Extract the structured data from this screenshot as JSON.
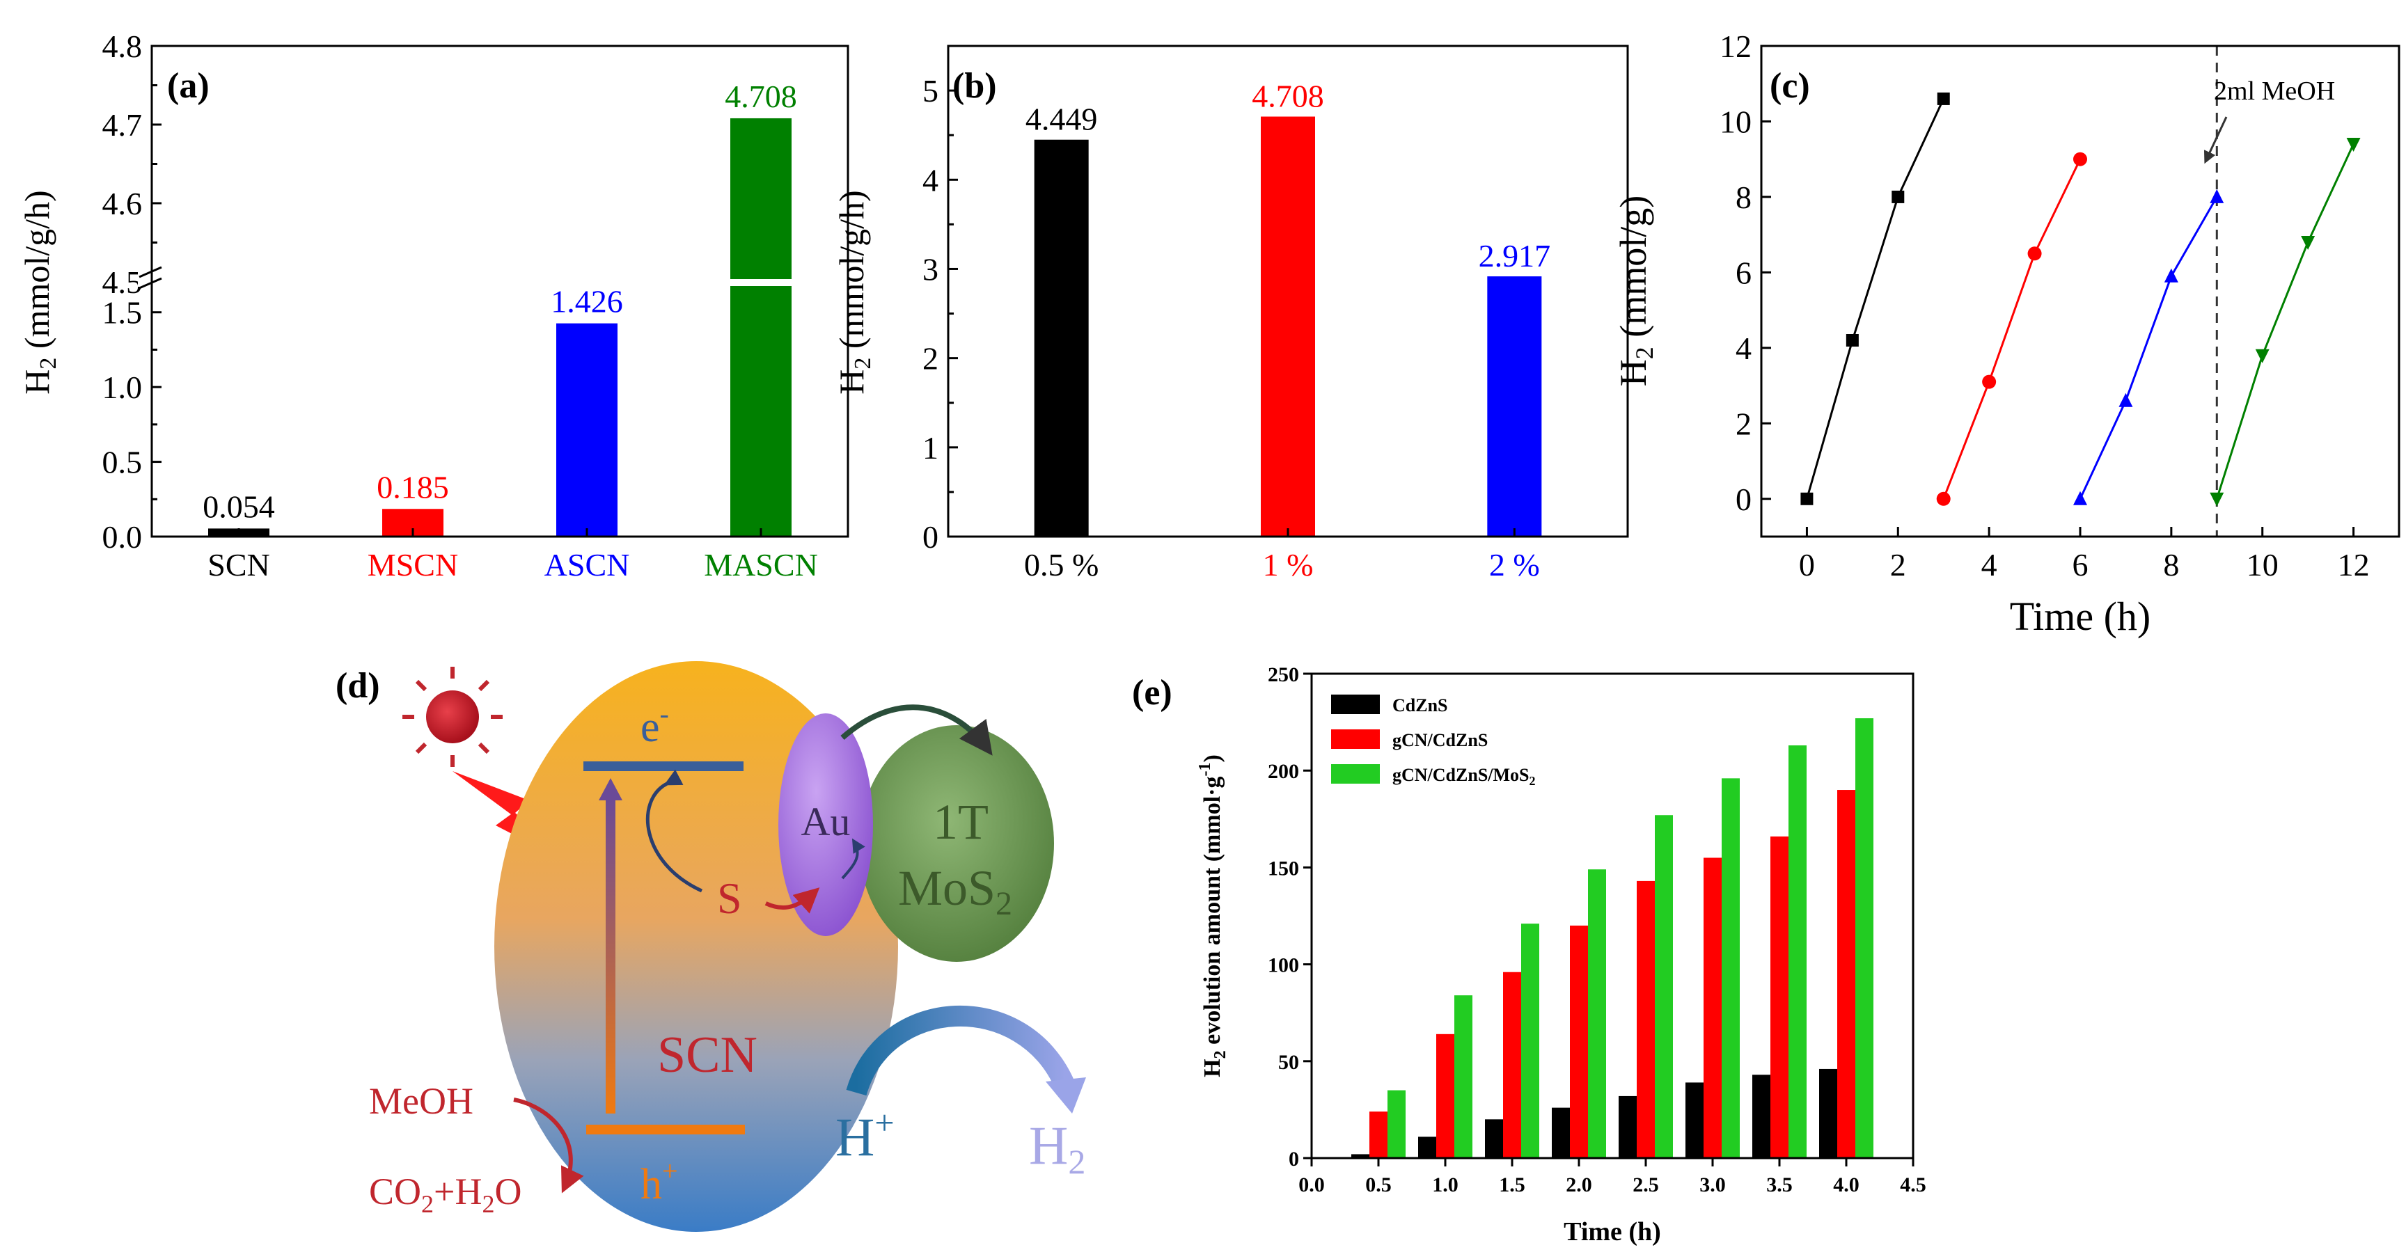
{
  "colors": {
    "black": "#000000",
    "red": "#ff0000",
    "blue": "#0000ff",
    "green": "#008000",
    "bright_green": "#22cc22",
    "dark_red": "#c0262d",
    "scn_orange": "#f5a623",
    "scn_blue": "#4f8ccc",
    "au": "#a46ce0",
    "mos2": "#6c9a4e",
    "arrow_blue": "#2a6fa0",
    "h2_lilac": "#a8a8e6"
  },
  "chart_data": [
    {
      "panel": "(a)",
      "type": "bar",
      "ylabel_main": "H",
      "ylabel_sub": "2",
      "ylabel_rest": " (mmol/g/h)",
      "categories": [
        "SCN",
        "MSCN",
        "ASCN",
        "MASCN"
      ],
      "values": [
        0.054,
        0.185,
        1.426,
        4.708
      ],
      "value_labels": [
        "0.054",
        "0.185",
        "1.426",
        "4.708"
      ],
      "colors": [
        "#000000",
        "#ff0000",
        "#0000ff",
        "#008000"
      ],
      "axis_break": true,
      "ylim_lower": [
        0.0,
        1.75
      ],
      "ylim_upper": [
        4.5,
        4.8
      ],
      "yticks_lower": [
        "0.0",
        "0.5",
        "1.0",
        "1.5"
      ],
      "yticks_upper": [
        "4.5",
        "4.6",
        "4.7",
        "4.8"
      ]
    },
    {
      "panel": "(b)",
      "type": "bar",
      "ylabel_main": "H",
      "ylabel_sub": "2",
      "ylabel_rest": " (mmol/g/h)",
      "categories": [
        "0.5 %",
        "1 %",
        "2 %"
      ],
      "values": [
        4.449,
        4.708,
        2.917
      ],
      "value_labels": [
        "4.449",
        "4.708",
        "2.917"
      ],
      "colors": [
        "#000000",
        "#ff0000",
        "#0000ff"
      ],
      "ylim": [
        0,
        5.5
      ],
      "yticks": [
        "0",
        "1",
        "2",
        "3",
        "4",
        "5"
      ]
    },
    {
      "panel": "(c)",
      "type": "line",
      "ylabel_main": "H",
      "ylabel_sub": "2",
      "ylabel_rest": " (mmol/g)",
      "xlabel": "Time (h)",
      "xlim": [
        -1,
        13
      ],
      "ylim": [
        -1,
        12
      ],
      "xticks": [
        "0",
        "2",
        "4",
        "6",
        "8",
        "10",
        "12"
      ],
      "yticks": [
        "0",
        "2",
        "4",
        "6",
        "8",
        "10",
        "12"
      ],
      "annotation": "2ml MeOH",
      "annotation_x": 9,
      "series": [
        {
          "color": "#000000",
          "marker": "square",
          "x": [
            0,
            1,
            2,
            3
          ],
          "y": [
            0,
            4.2,
            8.0,
            10.6
          ]
        },
        {
          "color": "#ff0000",
          "marker": "circle",
          "x": [
            3,
            4,
            5,
            6
          ],
          "y": [
            0,
            3.1,
            6.5,
            9.0
          ]
        },
        {
          "color": "#0000ff",
          "marker": "triangle-up",
          "x": [
            6,
            7,
            8,
            9
          ],
          "y": [
            0,
            2.6,
            5.9,
            8.0
          ]
        },
        {
          "color": "#008000",
          "marker": "triangle-down",
          "x": [
            9,
            10,
            11,
            12
          ],
          "y": [
            0,
            3.8,
            6.8,
            9.4
          ]
        }
      ]
    },
    {
      "panel": "(e)",
      "type": "bar",
      "ylabel": "H",
      "ylabel_sub": "2",
      "ylabel_rest": " evolution amount (mmol·g",
      "ylabel_sup": "-1",
      "ylabel_end": ")",
      "xlabel": "Time (h)",
      "xlim": [
        0,
        4.5
      ],
      "ylim": [
        0,
        250
      ],
      "xticks": [
        "0.0",
        "0.5",
        "1.0",
        "1.5",
        "2.0",
        "2.5",
        "3.0",
        "3.5",
        "4.0",
        "4.5"
      ],
      "yticks": [
        "0",
        "50",
        "100",
        "150",
        "200",
        "250"
      ],
      "x": [
        0.5,
        1.0,
        1.5,
        2.0,
        2.5,
        3.0,
        3.5,
        4.0
      ],
      "series": [
        {
          "name": "CdZnS",
          "color": "#000000",
          "values": [
            2,
            11,
            20,
            26,
            32,
            39,
            43,
            46
          ]
        },
        {
          "name": "gCN/CdZnS",
          "color": "#ff0000",
          "values": [
            24,
            64,
            96,
            120,
            143,
            155,
            166,
            190
          ]
        },
        {
          "name": "gCN/CdZnS/MoS",
          "name_sub": "2",
          "color": "#22cc22",
          "values": [
            35,
            84,
            121,
            149,
            177,
            196,
            213,
            227
          ]
        }
      ]
    }
  ],
  "schematic": {
    "panel": "(d)",
    "e_minus": "e",
    "e_sup": "-",
    "h_plus": "h",
    "h_sup": "+",
    "au": "Au",
    "mos2_line1": "1T",
    "mos2_line2": "MoS",
    "mos2_sub": "2",
    "s_label": "S",
    "scn": "SCN",
    "meoh": "MeOH",
    "co2_h2o": "CO",
    "co2_sub": "2",
    "co2_rest": "+H",
    "h2o_sub": "2",
    "h2o_rest": "O",
    "h_ion": "H",
    "h_ion_sup": "+",
    "h2": "H",
    "h2_sub": "2"
  }
}
